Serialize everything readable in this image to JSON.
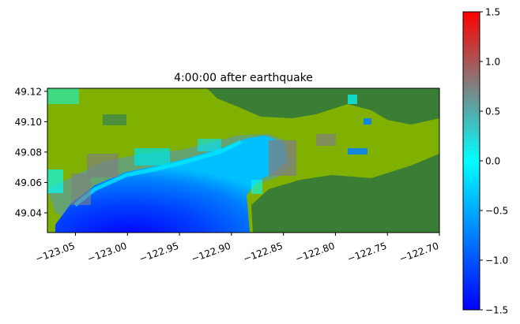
{
  "chart_data": {
    "type": "heatmap",
    "title": "4:00:00 after earthquake",
    "xlabel": "",
    "ylabel": "",
    "xlim": [
      -123.077,
      -122.7
    ],
    "ylim": [
      49.027,
      49.122
    ],
    "x_ticks": [
      -123.05,
      -123.0,
      -122.95,
      -122.9,
      -122.85,
      -122.8,
      -122.75,
      -122.7
    ],
    "x_tick_labels": [
      "−123.05",
      "−123.00",
      "−122.95",
      "−122.90",
      "−122.85",
      "−122.80",
      "−122.75",
      "−122.70"
    ],
    "y_ticks": [
      49.04,
      49.06,
      49.08,
      49.1,
      49.12
    ],
    "y_tick_labels": [
      "49.04",
      "49.06",
      "49.08",
      "49.10",
      "49.12"
    ],
    "colorbar": {
      "range": [
        -1.5,
        1.5
      ],
      "ticks": [
        -1.5,
        -1.0,
        -0.5,
        0.0,
        0.5,
        1.0,
        1.5
      ],
      "tick_labels": [
        "−1.5",
        "−1.0",
        "−0.5",
        "0.0",
        "0.5",
        "1.0",
        "1.5"
      ],
      "colors": [
        "#0000ff",
        "#0080ff",
        "#00ffff",
        "#808080",
        "#ff0000"
      ]
    },
    "land_colors": {
      "lowland": "#80b000",
      "highland": "#3a7d34"
    },
    "grid": false
  }
}
